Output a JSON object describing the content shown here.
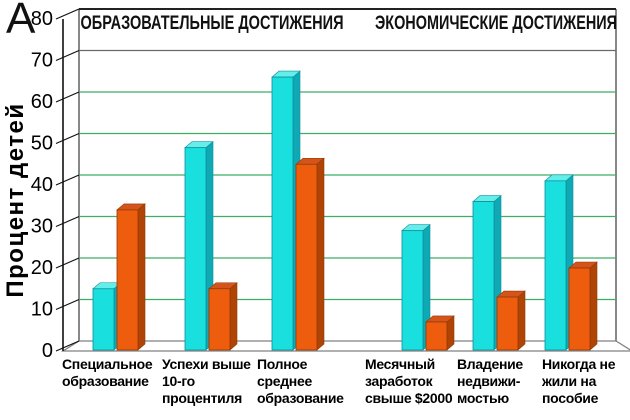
{
  "panel_label": "A",
  "chart_data": {
    "type": "bar",
    "projection": "3d",
    "section_headers": [
      "ОБРАЗОВАТЕЛЬНЫЕ ДОСТИЖЕНИЯ",
      "ЭКОНОМИЧЕСКИЕ ДОСТИЖЕНИЯ"
    ],
    "ylabel": "Процент детей",
    "ylim": [
      0,
      80
    ],
    "ytick_step": 10,
    "yticks": [
      0,
      10,
      20,
      30,
      40,
      50,
      60,
      70,
      80
    ],
    "grid": true,
    "legend": "none",
    "categories": [
      "Специальное образование",
      "Успехи выше 10-го процентиля",
      "Полное среднее образование",
      "Месячный заработок свыше $2000",
      "Владение недвижимостью",
      "Никогда не жили на пособие"
    ],
    "category_lines": [
      [
        "Специальное",
        "образование"
      ],
      [
        "Успехи выше",
        "10-го",
        "процентиля"
      ],
      [
        "Полное",
        "среднее",
        "образование"
      ],
      [
        "Месячный",
        "заработок",
        "свыше $2000"
      ],
      [
        "Владение",
        "недвижи-",
        "мостью"
      ],
      [
        "Никогда не",
        "жили на",
        "пособие"
      ]
    ],
    "category_sections": [
      "education",
      "education",
      "education",
      "economic",
      "economic",
      "economic"
    ],
    "series": [
      {
        "name": "cyan-bars",
        "color": "#19dfde",
        "values": [
          15,
          49,
          66,
          29,
          36,
          41
        ]
      },
      {
        "name": "orange-bars",
        "color": "#ee5d0e",
        "values": [
          34,
          15,
          45,
          7,
          13,
          20
        ]
      }
    ]
  },
  "colors": {
    "cyan_front": "#19dfde",
    "cyan_side": "#0ea9b4",
    "cyan_top": "#63eeea",
    "cyan_edge": "#0a8f9c",
    "orange_front": "#ee5d0e",
    "orange_side": "#b04407",
    "orange_top": "#d4541c",
    "orange_edge": "#8f3a06",
    "grid_green": "#3fae63",
    "grid_gray": "#6a6a6a",
    "wall_edge": "#555555",
    "floor_edge": "#808080",
    "axis": "#111111",
    "text": "#000000",
    "background": "#ffffff"
  }
}
